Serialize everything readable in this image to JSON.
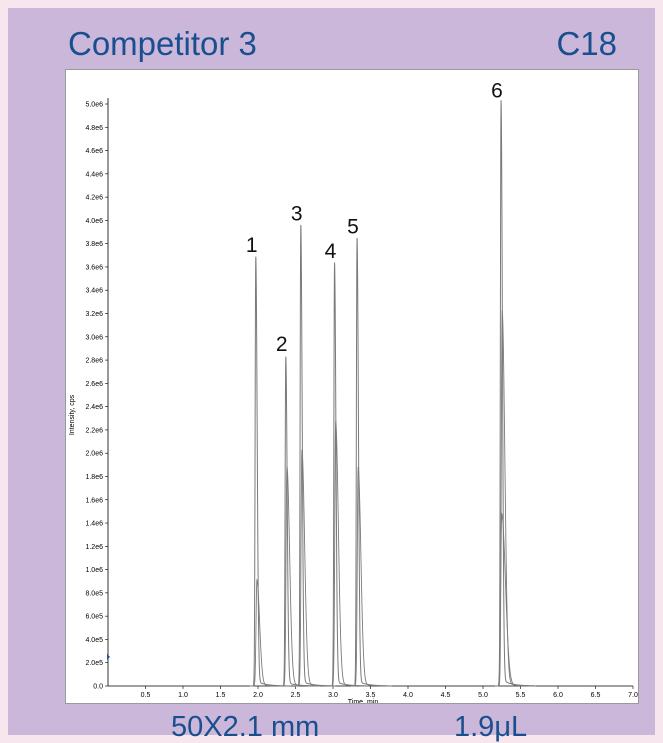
{
  "header": {
    "left_title": "Competitor 3",
    "right_title": "C18"
  },
  "footer": {
    "left": "50X2.1 mm",
    "right": "1.9μL"
  },
  "colors": {
    "title": "#1a4f8f",
    "panel": "#cbb7da",
    "trace": "#7a7a7a"
  },
  "chart_data": {
    "type": "line",
    "title": "",
    "xlabel": "Time, min",
    "ylabel": "Intensity, cps",
    "xlim": [
      0,
      7.0
    ],
    "ylim": [
      0,
      5000000
    ],
    "x_ticks": [
      "0.5",
      "1.0",
      "1.5",
      "2.0",
      "2.5",
      "3.0",
      "3.5",
      "4.0",
      "4.5",
      "5.0",
      "5.5",
      "6.0",
      "6.5",
      "7.0"
    ],
    "x_tick_values": [
      0.5,
      1.0,
      1.5,
      2.0,
      2.5,
      3.0,
      3.5,
      4.0,
      4.5,
      5.0,
      5.5,
      6.0,
      6.5,
      7.0
    ],
    "y_ticks": [
      "0.0",
      "2.0e5",
      "4.0e5",
      "6.0e5",
      "8.0e5",
      "1.0e6",
      "1.2e6",
      "1.4e6",
      "1.6e6",
      "1.8e6",
      "2.0e6",
      "2.2e6",
      "2.4e6",
      "2.6e6",
      "2.8e6",
      "3.0e6",
      "3.2e6",
      "3.4e6",
      "3.6e6",
      "3.8e6",
      "4.0e6",
      "4.2e6",
      "4.4e6",
      "4.6e6",
      "4.8e6",
      "5.0e6"
    ],
    "y_tick_values": [
      0,
      200000,
      400000,
      600000,
      800000,
      1000000,
      1200000,
      1400000,
      1600000,
      1800000,
      2000000,
      2200000,
      2400000,
      2600000,
      2800000,
      3000000,
      3200000,
      3400000,
      3600000,
      3800000,
      4000000,
      4200000,
      4400000,
      4600000,
      4800000,
      5000000
    ],
    "peaks": [
      {
        "label": "1",
        "time": 1.97,
        "height": 3650000,
        "secondary_height": 900000
      },
      {
        "label": "2",
        "time": 2.37,
        "height": 2800000,
        "secondary_height": 1870000
      },
      {
        "label": "3",
        "time": 2.57,
        "height": 3920000,
        "secondary_height": 2010000
      },
      {
        "label": "4",
        "time": 3.02,
        "height": 3600000,
        "secondary_height": 2250000
      },
      {
        "label": "5",
        "time": 3.32,
        "height": 3810000,
        "secondary_height": 1860000
      },
      {
        "label": "6",
        "time": 5.24,
        "height": 4980000,
        "secondary_height": 3190000,
        "tertiary_height": 1460000
      }
    ]
  }
}
